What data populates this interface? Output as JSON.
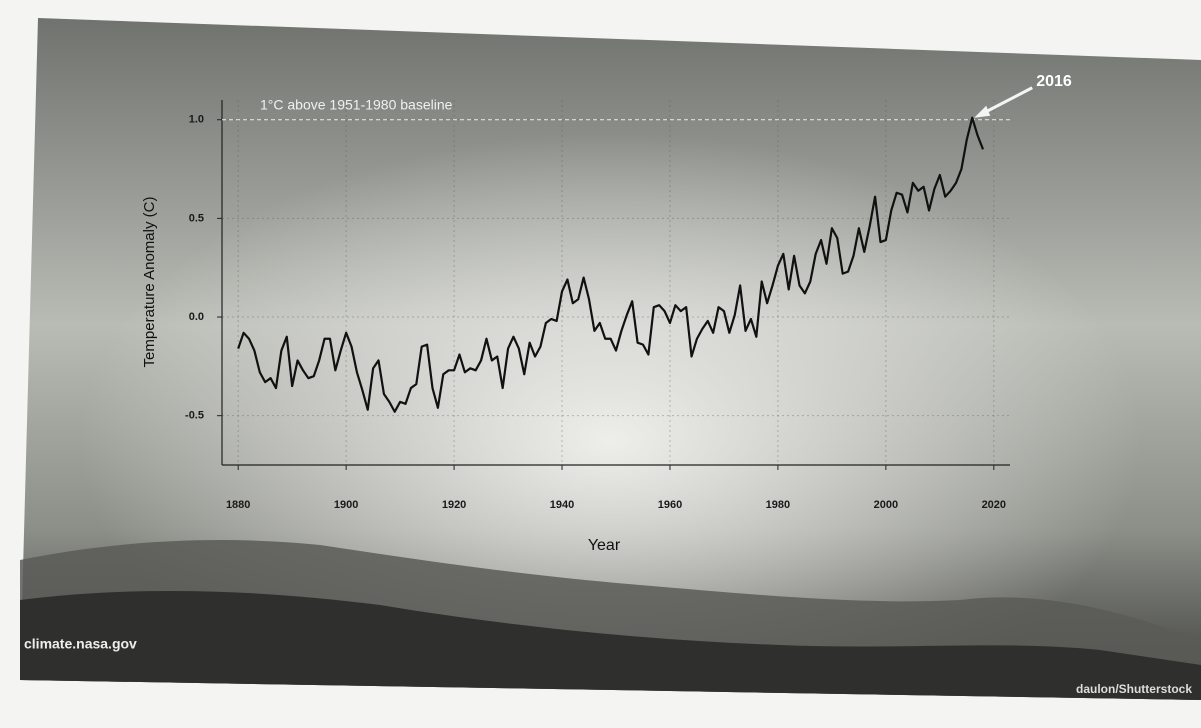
{
  "chart_data": {
    "type": "line",
    "annotation_baseline": {
      "value": 1,
      "label": "1°C above 1951-1980 baseline"
    },
    "annotation": "2016",
    "xlabel": "Year",
    "ylabel": "Temperature Anomaly (C)",
    "source": "climate.nasa.gov",
    "credit": "daulon/Shutterstock",
    "color": "#111111",
    "grid": true,
    "xlim": [
      1877,
      2023
    ],
    "xticks": [
      1880,
      1900,
      1920,
      1940,
      1960,
      1980,
      2000,
      2020
    ],
    "ylim": [
      -0.75,
      1.1
    ],
    "yticks": [
      -0.5,
      {
        "value": 0,
        "label": "0.0"
      },
      0.5,
      {
        "value": 1,
        "label": "1.0"
      }
    ],
    "x": [
      1880,
      1881,
      1882,
      1883,
      1884,
      1885,
      1886,
      1887,
      1888,
      1889,
      1890,
      1891,
      1892,
      1893,
      1894,
      1895,
      1896,
      1897,
      1898,
      1899,
      1900,
      1901,
      1902,
      1903,
      1904,
      1905,
      1906,
      1907,
      1908,
      1909,
      1910,
      1911,
      1912,
      1913,
      1914,
      1915,
      1916,
      1917,
      1918,
      1919,
      1920,
      1921,
      1922,
      1923,
      1924,
      1925,
      1926,
      1927,
      1928,
      1929,
      1930,
      1931,
      1932,
      1933,
      1934,
      1935,
      1936,
      1937,
      1938,
      1939,
      1940,
      1941,
      1942,
      1943,
      1944,
      1945,
      1946,
      1947,
      1948,
      1949,
      1950,
      1951,
      1952,
      1953,
      1954,
      1955,
      1956,
      1957,
      1958,
      1959,
      1960,
      1961,
      1962,
      1963,
      1964,
      1965,
      1966,
      1967,
      1968,
      1969,
      1970,
      1971,
      1972,
      1973,
      1974,
      1975,
      1976,
      1977,
      1978,
      1979,
      1980,
      1981,
      1982,
      1983,
      1984,
      1985,
      1986,
      1987,
      1988,
      1989,
      1990,
      1991,
      1992,
      1993,
      1994,
      1995,
      1996,
      1997,
      1998,
      1999,
      2000,
      2001,
      2002,
      2003,
      2004,
      2005,
      2006,
      2007,
      2008,
      2009,
      2010,
      2011,
      2012,
      2013,
      2014,
      2015,
      2016,
      2017,
      2018
    ],
    "values": [
      -0.16,
      -0.08,
      -0.11,
      -0.17,
      -0.28,
      -0.33,
      -0.31,
      -0.36,
      -0.17,
      -0.1,
      -0.35,
      -0.22,
      -0.27,
      -0.31,
      -0.3,
      -0.22,
      -0.11,
      -0.11,
      -0.27,
      -0.17,
      -0.08,
      -0.15,
      -0.28,
      -0.37,
      -0.47,
      -0.26,
      -0.22,
      -0.39,
      -0.43,
      -0.48,
      -0.43,
      -0.44,
      -0.36,
      -0.34,
      -0.15,
      -0.14,
      -0.36,
      -0.46,
      -0.29,
      -0.27,
      -0.27,
      -0.19,
      -0.28,
      -0.26,
      -0.27,
      -0.22,
      -0.11,
      -0.22,
      -0.2,
      -0.36,
      -0.16,
      -0.1,
      -0.16,
      -0.29,
      -0.13,
      -0.2,
      -0.15,
      -0.03,
      -0.01,
      -0.02,
      0.13,
      0.19,
      0.07,
      0.09,
      0.2,
      0.09,
      -0.07,
      -0.03,
      -0.11,
      -0.11,
      -0.17,
      -0.07,
      0.01,
      0.08,
      -0.13,
      -0.14,
      -0.19,
      0.05,
      0.06,
      0.03,
      -0.03,
      0.06,
      0.03,
      0.05,
      -0.2,
      -0.11,
      -0.06,
      -0.02,
      -0.08,
      0.05,
      0.03,
      -0.08,
      0.01,
      0.16,
      -0.07,
      -0.01,
      -0.1,
      0.18,
      0.07,
      0.16,
      0.26,
      0.32,
      0.14,
      0.31,
      0.16,
      0.12,
      0.18,
      0.32,
      0.39,
      0.27,
      0.45,
      0.4,
      0.22,
      0.23,
      0.31,
      0.45,
      0.33,
      0.46,
      0.61,
      0.38,
      0.39,
      0.54,
      0.63,
      0.62,
      0.53,
      0.68,
      0.64,
      0.66,
      0.54,
      0.65,
      0.72,
      0.61,
      0.64,
      0.68,
      0.75,
      0.9,
      1.01,
      0.92,
      0.85
    ]
  }
}
